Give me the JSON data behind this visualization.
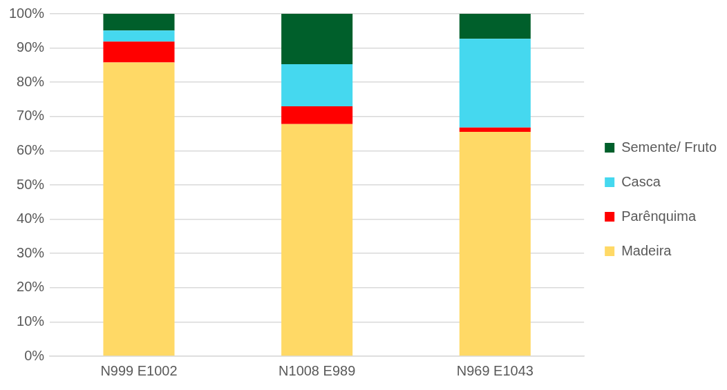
{
  "chart_data": {
    "type": "bar",
    "stacked": true,
    "categories": [
      "N999 E1002",
      "N1008 E989",
      "N969 E1043"
    ],
    "series": [
      {
        "name": "Madeira",
        "color": "#ffd966",
        "values": [
          85.8,
          67.8,
          65.5
        ]
      },
      {
        "name": "Parênquima",
        "color": "#ff0000",
        "values": [
          6.1,
          5.2,
          1.3
        ]
      },
      {
        "name": "Casca",
        "color": "#45d8ef",
        "values": [
          3.2,
          12.3,
          25.9
        ]
      },
      {
        "name": "Semente/ Fruto",
        "color": "#005f2b",
        "values": [
          4.9,
          14.7,
          7.3
        ]
      }
    ],
    "ylim": [
      0,
      100
    ],
    "yticks": [
      {
        "value": 0,
        "label": "0%"
      },
      {
        "value": 10,
        "label": "10%"
      },
      {
        "value": 20,
        "label": "20%"
      },
      {
        "value": 30,
        "label": "30%"
      },
      {
        "value": 40,
        "label": "40%"
      },
      {
        "value": 50,
        "label": "50%"
      },
      {
        "value": 60,
        "label": "60%"
      },
      {
        "value": 70,
        "label": "70%"
      },
      {
        "value": 80,
        "label": "80%"
      },
      {
        "value": 90,
        "label": "90%"
      },
      {
        "value": 100,
        "label": "100%"
      }
    ],
    "grid": "y",
    "legend": "right"
  }
}
